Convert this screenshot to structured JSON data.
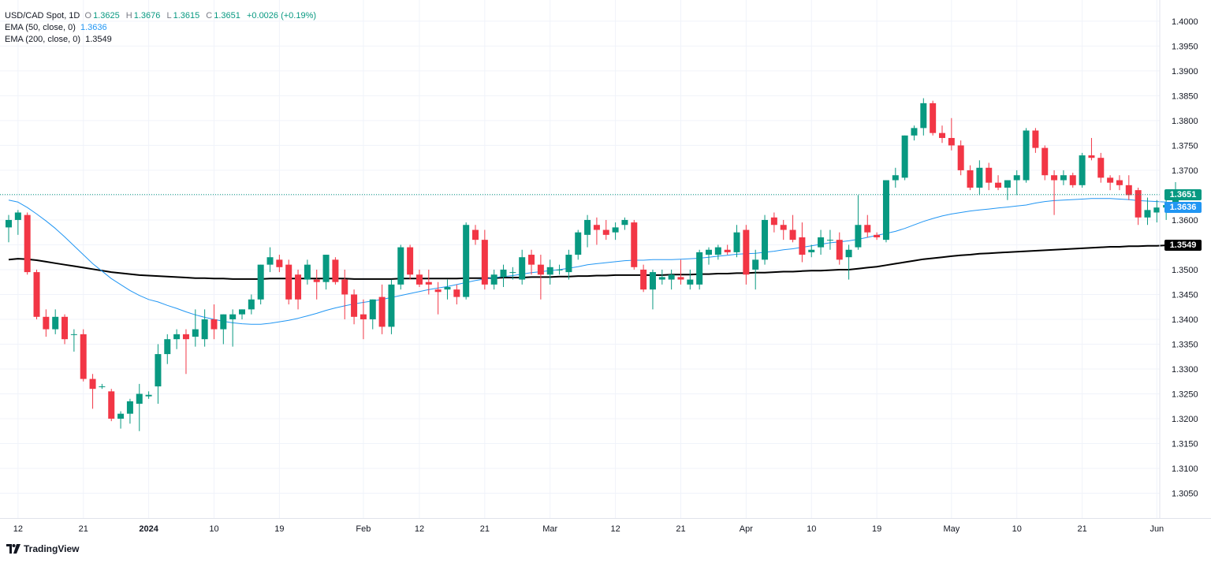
{
  "legend": {
    "symbol": "USD/CAD Spot, 1D",
    "open_label": "O",
    "open": "1.3625",
    "high_label": "H",
    "high": "1.3676",
    "low_label": "L",
    "low": "1.3615",
    "close_label": "C",
    "close": "1.3651",
    "change": "+0.0026 (+0.19%)",
    "ema50_label": "EMA (50, close, 0)",
    "ema50_value": "1.3636",
    "ema200_label": "EMA (200, close, 0)",
    "ema200_value": "1.3549"
  },
  "price_tags": {
    "last": "1.3651",
    "ema50": "1.3636",
    "ema200": "1.3549"
  },
  "brand": "TradingView",
  "colors": {
    "up": "#089981",
    "down": "#f23645",
    "ema50": "#2196f3",
    "ema200": "#000000",
    "grid": "#f0f3fa",
    "axis_text": "#131722"
  },
  "chart_data": {
    "type": "candlestick",
    "title": "USD/CAD Spot, 1D",
    "ylim": [
      1.3,
      1.403
    ],
    "y_ticks": [
      "1.3050",
      "1.3100",
      "1.3150",
      "1.3200",
      "1.3250",
      "1.3300",
      "1.3350",
      "1.3400",
      "1.3450",
      "1.3500",
      "1.3550",
      "1.3600",
      "1.3650",
      "1.3700",
      "1.3750",
      "1.3800",
      "1.3850",
      "1.3900",
      "1.3950",
      "1.4000"
    ],
    "x_ticks": [
      {
        "label": "12",
        "bar": 1
      },
      {
        "label": "21",
        "bar": 8
      },
      {
        "label": "2024",
        "bar": 15
      },
      {
        "label": "10",
        "bar": 22
      },
      {
        "label": "19",
        "bar": 29
      },
      {
        "label": "Feb",
        "bar": 38
      },
      {
        "label": "12",
        "bar": 44
      },
      {
        "label": "21",
        "bar": 51
      },
      {
        "label": "Mar",
        "bar": 58
      },
      {
        "label": "12",
        "bar": 65
      },
      {
        "label": "21",
        "bar": 72
      },
      {
        "label": "Apr",
        "bar": 79
      },
      {
        "label": "10",
        "bar": 86
      },
      {
        "label": "19",
        "bar": 93
      },
      {
        "label": "May",
        "bar": 101
      },
      {
        "label": "10",
        "bar": 108
      },
      {
        "label": "21",
        "bar": 115
      },
      {
        "label": "Jun",
        "bar": 123
      }
    ],
    "candles": [
      [
        1.3585,
        1.361,
        1.3555,
        1.36
      ],
      [
        1.36,
        1.362,
        1.357,
        1.3615
      ],
      [
        1.361,
        1.3615,
        1.349,
        1.3495
      ],
      [
        1.3495,
        1.35,
        1.34,
        1.3405
      ],
      [
        1.3405,
        1.342,
        1.3365,
        1.338
      ],
      [
        1.338,
        1.342,
        1.337,
        1.3405
      ],
      [
        1.3405,
        1.341,
        1.335,
        1.336
      ],
      [
        1.337,
        1.338,
        1.3335,
        1.337
      ],
      [
        1.337,
        1.338,
        1.3275,
        1.328
      ],
      [
        1.328,
        1.329,
        1.322,
        1.326
      ],
      [
        1.3265,
        1.327,
        1.326,
        1.3265
      ],
      [
        1.3255,
        1.326,
        1.3195,
        1.32
      ],
      [
        1.32,
        1.3215,
        1.318,
        1.321
      ],
      [
        1.321,
        1.324,
        1.319,
        1.3235
      ],
      [
        1.323,
        1.327,
        1.3175,
        1.325
      ],
      [
        1.3245,
        1.3255,
        1.324,
        1.3248
      ],
      [
        1.3265,
        1.335,
        1.323,
        1.333
      ],
      [
        1.333,
        1.337,
        1.331,
        1.336
      ],
      [
        1.336,
        1.338,
        1.334,
        1.337
      ],
      [
        1.337,
        1.338,
        1.329,
        1.336
      ],
      [
        1.3365,
        1.342,
        1.3345,
        1.338
      ],
      [
        1.336,
        1.342,
        1.3345,
        1.34
      ],
      [
        1.34,
        1.343,
        1.336,
        1.338
      ],
      [
        1.338,
        1.341,
        1.335,
        1.341
      ],
      [
        1.34,
        1.342,
        1.3345,
        1.341
      ],
      [
        1.341,
        1.342,
        1.34,
        1.342
      ],
      [
        1.342,
        1.345,
        1.341,
        1.344
      ],
      [
        1.344,
        1.351,
        1.343,
        1.351
      ],
      [
        1.351,
        1.3545,
        1.3495,
        1.3525
      ],
      [
        1.352,
        1.353,
        1.3495,
        1.3505
      ],
      [
        1.351,
        1.352,
        1.343,
        1.344
      ],
      [
        1.349,
        1.35,
        1.342,
        1.344
      ],
      [
        1.348,
        1.352,
        1.347,
        1.351
      ],
      [
        1.348,
        1.35,
        1.344,
        1.3475
      ],
      [
        1.3475,
        1.353,
        1.346,
        1.353
      ],
      [
        1.352,
        1.3525,
        1.347,
        1.3475
      ],
      [
        1.348,
        1.35,
        1.34,
        1.345
      ],
      [
        1.345,
        1.346,
        1.339,
        1.3405
      ],
      [
        1.341,
        1.344,
        1.336,
        1.34
      ],
      [
        1.34,
        1.344,
        1.338,
        1.344
      ],
      [
        1.3445,
        1.347,
        1.337,
        1.3385
      ],
      [
        1.3385,
        1.348,
        1.337,
        1.347
      ],
      [
        1.347,
        1.355,
        1.346,
        1.3545
      ],
      [
        1.3545,
        1.355,
        1.348,
        1.349
      ],
      [
        1.349,
        1.35,
        1.3465,
        1.347
      ],
      [
        1.3475,
        1.35,
        1.345,
        1.347
      ],
      [
        1.346,
        1.3475,
        1.341,
        1.3455
      ],
      [
        1.346,
        1.348,
        1.344,
        1.3465
      ],
      [
        1.346,
        1.347,
        1.343,
        1.3445
      ],
      [
        1.3445,
        1.3595,
        1.344,
        1.359
      ],
      [
        1.358,
        1.359,
        1.355,
        1.356
      ],
      [
        1.356,
        1.358,
        1.346,
        1.347
      ],
      [
        1.347,
        1.35,
        1.346,
        1.349
      ],
      [
        1.3485,
        1.351,
        1.3465,
        1.35
      ],
      [
        1.3495,
        1.3505,
        1.348,
        1.3495
      ],
      [
        1.348,
        1.354,
        1.347,
        1.3525
      ],
      [
        1.353,
        1.354,
        1.349,
        1.351
      ],
      [
        1.351,
        1.353,
        1.344,
        1.349
      ],
      [
        1.349,
        1.352,
        1.347,
        1.3505
      ],
      [
        1.35,
        1.351,
        1.349,
        1.35
      ],
      [
        1.3495,
        1.354,
        1.348,
        1.353
      ],
      [
        1.353,
        1.358,
        1.352,
        1.3575
      ],
      [
        1.357,
        1.361,
        1.3545,
        1.36
      ],
      [
        1.359,
        1.3605,
        1.355,
        1.358
      ],
      [
        1.358,
        1.36,
        1.356,
        1.357
      ],
      [
        1.3575,
        1.3595,
        1.356,
        1.3585
      ],
      [
        1.359,
        1.3605,
        1.358,
        1.36
      ],
      [
        1.3595,
        1.36,
        1.35,
        1.3505
      ],
      [
        1.35,
        1.351,
        1.3455,
        1.346
      ],
      [
        1.346,
        1.35,
        1.342,
        1.3495
      ],
      [
        1.348,
        1.35,
        1.347,
        1.3485
      ],
      [
        1.348,
        1.35,
        1.346,
        1.349
      ],
      [
        1.3485,
        1.352,
        1.347,
        1.348
      ],
      [
        1.347,
        1.35,
        1.346,
        1.348
      ],
      [
        1.347,
        1.354,
        1.346,
        1.3535
      ],
      [
        1.353,
        1.3545,
        1.351,
        1.354
      ],
      [
        1.353,
        1.355,
        1.352,
        1.3545
      ],
      [
        1.354,
        1.355,
        1.353,
        1.3535
      ],
      [
        1.3535,
        1.359,
        1.3525,
        1.3575
      ],
      [
        1.358,
        1.359,
        1.347,
        1.349
      ],
      [
        1.35,
        1.354,
        1.346,
        1.352
      ],
      [
        1.352,
        1.361,
        1.351,
        1.36
      ],
      [
        1.3605,
        1.3615,
        1.3575,
        1.359
      ],
      [
        1.359,
        1.36,
        1.356,
        1.358
      ],
      [
        1.358,
        1.361,
        1.3555,
        1.356
      ],
      [
        1.3565,
        1.3595,
        1.3515,
        1.353
      ],
      [
        1.3535,
        1.355,
        1.3525,
        1.354
      ],
      [
        1.3545,
        1.358,
        1.353,
        1.3565
      ],
      [
        1.356,
        1.358,
        1.354,
        1.356
      ],
      [
        1.356,
        1.3575,
        1.351,
        1.352
      ],
      [
        1.3525,
        1.355,
        1.348,
        1.354
      ],
      [
        1.3545,
        1.365,
        1.354,
        1.359
      ],
      [
        1.359,
        1.361,
        1.3565,
        1.3575
      ],
      [
        1.357,
        1.3575,
        1.356,
        1.3565
      ],
      [
        1.356,
        1.368,
        1.3555,
        1.368
      ],
      [
        1.368,
        1.3705,
        1.3665,
        1.369
      ],
      [
        1.3685,
        1.377,
        1.368,
        1.377
      ],
      [
        1.377,
        1.379,
        1.376,
        1.3785
      ],
      [
        1.3785,
        1.3845,
        1.377,
        1.3835
      ],
      [
        1.3835,
        1.384,
        1.377,
        1.3775
      ],
      [
        1.3775,
        1.379,
        1.3755,
        1.3765
      ],
      [
        1.3765,
        1.3805,
        1.374,
        1.375
      ],
      [
        1.375,
        1.376,
        1.369,
        1.37
      ],
      [
        1.37,
        1.371,
        1.366,
        1.3665
      ],
      [
        1.3665,
        1.372,
        1.365,
        1.3705
      ],
      [
        1.3705,
        1.3715,
        1.366,
        1.3675
      ],
      [
        1.3675,
        1.369,
        1.366,
        1.3665
      ],
      [
        1.3665,
        1.368,
        1.364,
        1.368
      ],
      [
        1.368,
        1.37,
        1.365,
        1.369
      ],
      [
        1.368,
        1.3785,
        1.3675,
        1.378
      ],
      [
        1.378,
        1.3785,
        1.3735,
        1.3745
      ],
      [
        1.3745,
        1.375,
        1.368,
        1.369
      ],
      [
        1.369,
        1.37,
        1.361,
        1.368
      ],
      [
        1.368,
        1.37,
        1.367,
        1.369
      ],
      [
        1.369,
        1.3695,
        1.3665,
        1.367
      ],
      [
        1.367,
        1.3735,
        1.3665,
        1.373
      ],
      [
        1.373,
        1.3765,
        1.372,
        1.3725
      ],
      [
        1.3725,
        1.3735,
        1.3675,
        1.3685
      ],
      [
        1.3685,
        1.369,
        1.366,
        1.3675
      ],
      [
        1.368,
        1.369,
        1.366,
        1.367
      ],
      [
        1.367,
        1.369,
        1.364,
        1.365
      ],
      [
        1.366,
        1.3665,
        1.359,
        1.3605
      ],
      [
        1.3605,
        1.3645,
        1.359,
        1.362
      ],
      [
        1.3615,
        1.364,
        1.3595,
        1.3625
      ],
      [
        1.3625,
        1.365,
        1.36,
        1.363
      ],
      [
        1.3625,
        1.3676,
        1.3615,
        1.3651
      ]
    ],
    "ema50": [
      1.364,
      1.3636,
      1.3625,
      1.3612,
      1.3598,
      1.3583,
      1.3566,
      1.3548,
      1.353,
      1.3512,
      1.3497,
      1.3482,
      1.347,
      1.3458,
      1.3448,
      1.344,
      1.3435,
      1.3428,
      1.3422,
      1.3415,
      1.3409,
      1.3404,
      1.34,
      1.3396,
      1.3393,
      1.3391,
      1.339,
      1.339,
      1.3392,
      1.3395,
      1.3398,
      1.3402,
      1.3407,
      1.3412,
      1.3418,
      1.3423,
      1.3427,
      1.3431,
      1.3434,
      1.3437,
      1.344,
      1.3444,
      1.3448,
      1.3452,
      1.3456,
      1.346,
      1.3463,
      1.3466,
      1.347,
      1.3474,
      1.3478,
      1.3481,
      1.3484,
      1.3486,
      1.3488,
      1.3491,
      1.3494,
      1.3496,
      1.3498,
      1.35,
      1.3503,
      1.3506,
      1.351,
      1.3512,
      1.3514,
      1.3516,
      1.3518,
      1.3519,
      1.3519,
      1.352,
      1.352,
      1.352,
      1.3521,
      1.3522,
      1.3523,
      1.3525,
      1.3527,
      1.3529,
      1.3531,
      1.3532,
      1.3533,
      1.3535,
      1.3537,
      1.354,
      1.3542,
      1.3545,
      1.3548,
      1.3551,
      1.3554,
      1.3556,
      1.3558,
      1.3561,
      1.3565,
      1.3569,
      1.3573,
      1.3577,
      1.3583,
      1.359,
      1.3597,
      1.3603,
      1.3608,
      1.3612,
      1.3615,
      1.3618,
      1.362,
      1.3622,
      1.3624,
      1.3626,
      1.3628,
      1.363,
      1.3634,
      1.3637,
      1.3639,
      1.364,
      1.3641,
      1.3642,
      1.3643,
      1.3643,
      1.3643,
      1.3642,
      1.3641,
      1.3639,
      1.3638,
      1.3637,
      1.3636
    ],
    "ema200": [
      1.352,
      1.3522,
      1.3521,
      1.3519,
      1.3516,
      1.3513,
      1.351,
      1.3507,
      1.3504,
      1.3501,
      1.3498,
      1.3495,
      1.3493,
      1.3491,
      1.3489,
      1.3488,
      1.3487,
      1.3486,
      1.3485,
      1.3484,
      1.3483,
      1.3483,
      1.3482,
      1.3482,
      1.3481,
      1.3481,
      1.3481,
      1.3481,
      1.3482,
      1.3482,
      1.3482,
      1.3482,
      1.3482,
      1.3482,
      1.3482,
      1.3482,
      1.3482,
      1.3481,
      1.3481,
      1.3481,
      1.3481,
      1.3481,
      1.3482,
      1.3482,
      1.3482,
      1.3482,
      1.3482,
      1.3482,
      1.3482,
      1.3483,
      1.3483,
      1.3483,
      1.3483,
      1.3484,
      1.3484,
      1.3484,
      1.3485,
      1.3485,
      1.3485,
      1.3486,
      1.3486,
      1.3487,
      1.3487,
      1.3488,
      1.3488,
      1.3489,
      1.3489,
      1.3489,
      1.3489,
      1.3489,
      1.3489,
      1.349,
      1.349,
      1.349,
      1.3491,
      1.3491,
      1.3492,
      1.3492,
      1.3493,
      1.3493,
      1.3494,
      1.3494,
      1.3495,
      1.3496,
      1.3496,
      1.3497,
      1.3498,
      1.3498,
      1.3499,
      1.35,
      1.35,
      1.3502,
      1.3504,
      1.3506,
      1.3509,
      1.3512,
      1.3515,
      1.3518,
      1.3521,
      1.3523,
      1.3525,
      1.3527,
      1.3529,
      1.353,
      1.3532,
      1.3533,
      1.3534,
      1.3535,
      1.3536,
      1.3537,
      1.3538,
      1.3539,
      1.354,
      1.3541,
      1.3542,
      1.3543,
      1.3544,
      1.3545,
      1.3546,
      1.3546,
      1.3547,
      1.3547,
      1.3548,
      1.3548,
      1.3549
    ]
  }
}
